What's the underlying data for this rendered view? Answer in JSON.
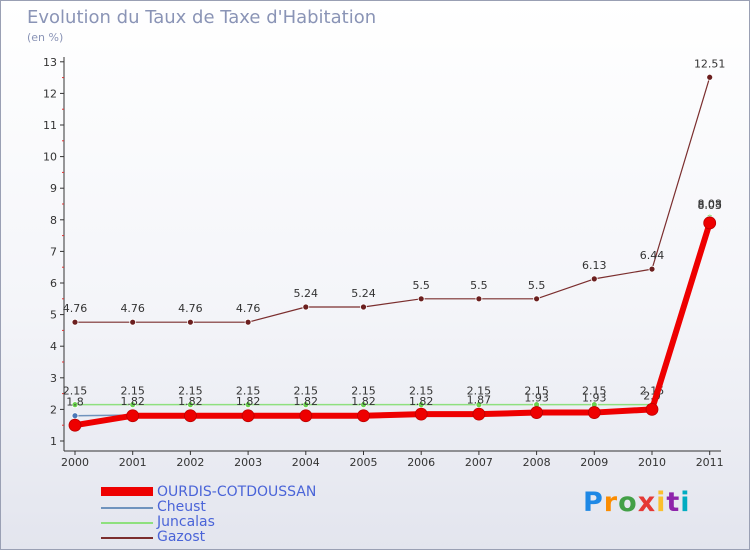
{
  "title": "Evolution du Taux de Taxe d'Habitation",
  "unit_label": "(en %)",
  "logo": {
    "text": "Proxiti",
    "colors": [
      "#1e88e5",
      "#fb8c00",
      "#43a047",
      "#e53935",
      "#fbc02d",
      "#8e24aa",
      "#00acc1"
    ]
  },
  "chart_data": {
    "type": "line",
    "x": [
      "2000",
      "2001",
      "2002",
      "2003",
      "2004",
      "2005",
      "2006",
      "2007",
      "2008",
      "2009",
      "2010",
      "2011"
    ],
    "y_ticks": [
      "1",
      "2",
      "3",
      "4",
      "5",
      "6",
      "7",
      "8",
      "9",
      "10",
      "11",
      "12",
      "13"
    ],
    "ylim": [
      1,
      13
    ],
    "grid": false,
    "legend_position": "bottom-left",
    "series": [
      {
        "name": "OURDIS-COTDOUSSAN",
        "color": "#ee0000",
        "values": [
          1.5,
          1.8,
          1.8,
          1.8,
          1.8,
          1.8,
          1.85,
          1.85,
          1.9,
          1.9,
          2.0,
          7.9
        ],
        "labels": []
      },
      {
        "name": "Cheust",
        "color": "#6f93bd",
        "values": [
          1.8,
          1.82,
          1.82,
          1.82,
          1.82,
          1.82,
          1.82,
          1.87,
          1.93,
          1.93,
          2.0,
          8.03
        ],
        "labels": [
          "1.8",
          "1.82",
          "1.82",
          "1.82",
          "1.82",
          "1.82",
          "1.82",
          "1.87",
          "1.93",
          "1.93",
          "2.0",
          "8.03"
        ]
      },
      {
        "name": "Juncalas",
        "color": "#8ee07e",
        "values": [
          2.15,
          2.15,
          2.15,
          2.15,
          2.15,
          2.15,
          2.15,
          2.15,
          2.15,
          2.15,
          2.15,
          8.08
        ],
        "labels": [
          "2.15",
          "2.15",
          "2.15",
          "2.15",
          "2.15",
          "2.15",
          "2.15",
          "2.15",
          "2.15",
          "2.15",
          "2.15",
          "8.08"
        ]
      },
      {
        "name": "Gazost",
        "color": "#7b2e2e",
        "values": [
          4.76,
          4.76,
          4.76,
          4.76,
          5.24,
          5.24,
          5.5,
          5.5,
          5.5,
          6.13,
          6.44,
          12.51
        ],
        "labels": [
          "4.76",
          "4.76",
          "4.76",
          "4.76",
          "5.24",
          "5.24",
          "5.5",
          "5.5",
          "5.5",
          "6.13",
          "6.44",
          "12.51"
        ]
      }
    ]
  }
}
